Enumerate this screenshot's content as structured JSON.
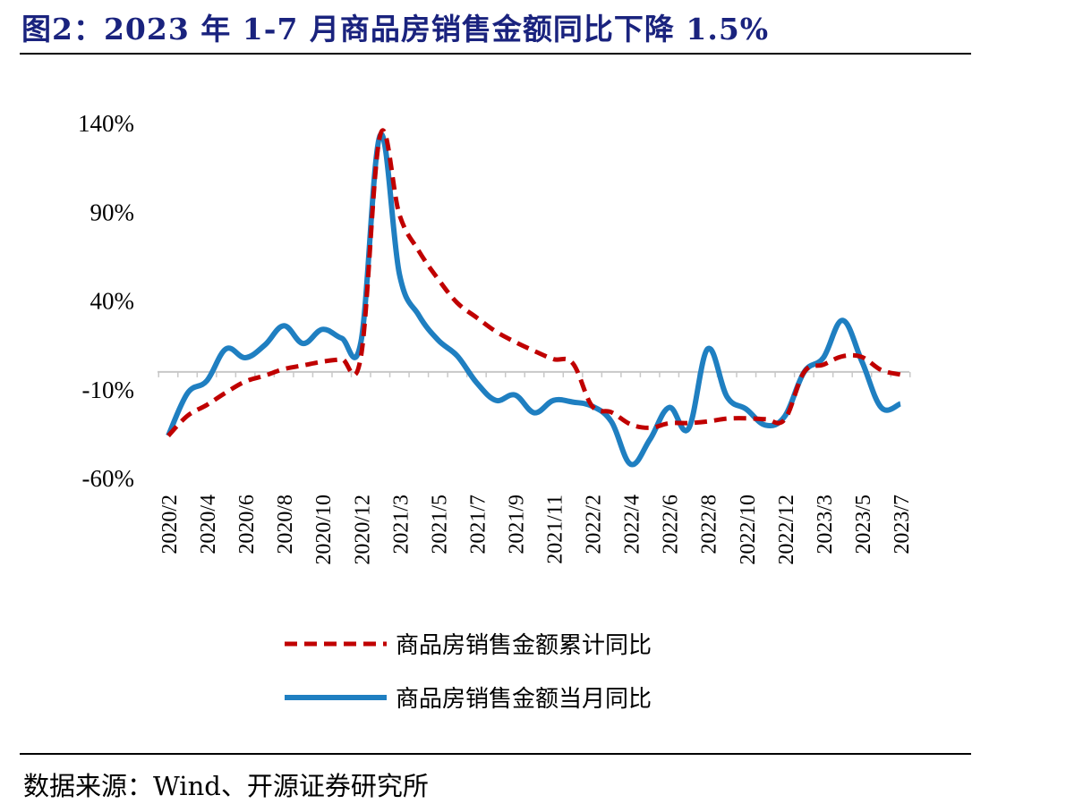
{
  "title": "图2：2023 年 1-7 月商品房销售金额同比下降 1.5%",
  "source": "数据来源：Wind、开源证券研究所",
  "chart_data": {
    "type": "line",
    "ylim": [
      -60,
      140
    ],
    "yticks": [
      140,
      90,
      40,
      -10,
      -60
    ],
    "ytick_labels": [
      "140%",
      "90%",
      "40%",
      "-10%",
      "-60%"
    ],
    "x": [
      "2020/2",
      "2020/3",
      "2020/4",
      "2020/5",
      "2020/6",
      "2020/7",
      "2020/8",
      "2020/9",
      "2020/10",
      "2020/11",
      "2020/12",
      "2021/2",
      "2021/3",
      "2021/4",
      "2021/5",
      "2021/6",
      "2021/7",
      "2021/8",
      "2021/9",
      "2021/10",
      "2021/11",
      "2021/12",
      "2022/2",
      "2022/3",
      "2022/4",
      "2022/5",
      "2022/6",
      "2022/7",
      "2022/8",
      "2022/9",
      "2022/10",
      "2022/11",
      "2022/12",
      "2023/2",
      "2023/3",
      "2023/4",
      "2023/5",
      "2023/6",
      "2023/7"
    ],
    "xtick_labels": [
      "2020/2",
      "2020/4",
      "2020/6",
      "2020/8",
      "2020/10",
      "2020/12",
      "2021/3",
      "2021/5",
      "2021/7",
      "2021/9",
      "2021/11",
      "2022/2",
      "2022/4",
      "2022/6",
      "2022/8",
      "2022/10",
      "2022/12",
      "2023/3",
      "2023/5",
      "2023/7"
    ],
    "series": [
      {
        "name": "商品房销售金额累计同比",
        "color": "#c00000",
        "style": "dashed",
        "values": [
          -35.9,
          -24.7,
          -18.6,
          -11.6,
          -5.4,
          -2.1,
          1.6,
          3.7,
          5.8,
          7.2,
          8.7,
          133.4,
          88.5,
          68.2,
          52.4,
          38.9,
          30.7,
          22.8,
          16.9,
          11.8,
          7.2,
          4.8,
          -19.3,
          -22.7,
          -29.5,
          -31.5,
          -28.9,
          -28.8,
          -27.9,
          -26.3,
          -26.1,
          -26.6,
          -26.7,
          -0.1,
          4.1,
          8.8,
          8.4,
          1.1,
          -1.5
        ]
      },
      {
        "name": "商品房销售金额当月同比",
        "color": "#1f7fc1",
        "style": "solid",
        "values": [
          -35.9,
          -12.0,
          -5.0,
          13.0,
          8.0,
          15.0,
          26.0,
          16.0,
          24.0,
          19.0,
          17.0,
          133.4,
          55.0,
          32.0,
          18.0,
          9.0,
          -6.0,
          -16.0,
          -13.0,
          -23.0,
          -16.0,
          -17.0,
          -19.3,
          -28.0,
          -52.0,
          -38.0,
          -20.0,
          -32.0,
          13.0,
          -14.0,
          -21.0,
          -30.0,
          -25.0,
          -0.1,
          8.0,
          29.0,
          6.0,
          -20.0,
          -18.0
        ]
      }
    ],
    "legend_position": "bottom",
    "grid": false
  }
}
